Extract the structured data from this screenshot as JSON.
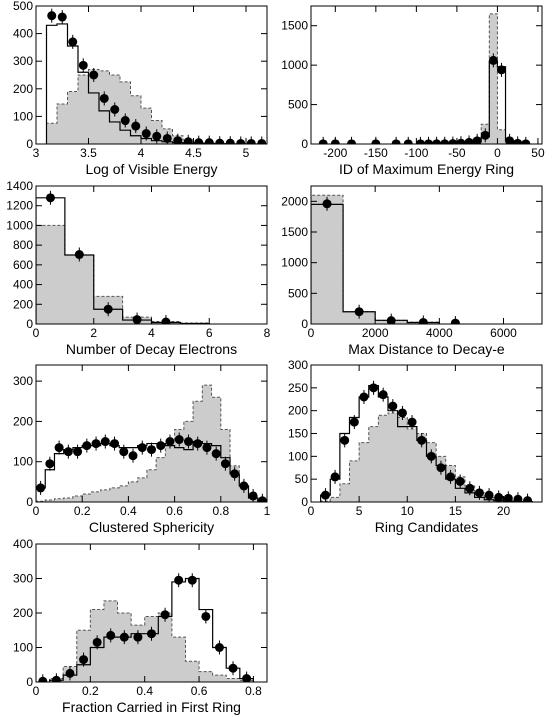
{
  "chart_data": [
    {
      "type": "bar",
      "xlabel": "Log of Visible Energy",
      "xlim": [
        3.0,
        5.2
      ],
      "ylim": [
        0,
        500
      ],
      "xticks": [
        3,
        3.5,
        4,
        4.5,
        5
      ],
      "xtick_labels": [
        "3",
        "3.5",
        "4",
        "4.5",
        "5"
      ],
      "yticks": [
        0,
        100,
        200,
        300,
        400,
        500
      ],
      "ytick_labels": [
        "0",
        "100",
        "200",
        "300",
        "400",
        "500"
      ],
      "bin_edges": [
        3.1,
        3.2,
        3.3,
        3.4,
        3.5,
        3.6,
        3.7,
        3.8,
        3.9,
        4.0,
        4.1,
        4.2,
        4.3,
        4.4,
        4.5,
        4.6,
        4.7,
        4.8,
        4.9,
        5.0,
        5.1,
        5.2
      ],
      "shaded_counts": [
        75,
        145,
        190,
        250,
        270,
        265,
        250,
        225,
        175,
        130,
        85,
        55,
        30,
        15,
        5,
        3,
        2,
        1,
        1,
        0,
        0
      ],
      "outline_counts": [
        430,
        435,
        355,
        260,
        185,
        120,
        80,
        50,
        30,
        20,
        12,
        8,
        5,
        3,
        2,
        1,
        1,
        0,
        0,
        0,
        0
      ],
      "points_x": [
        3.15,
        3.25,
        3.35,
        3.45,
        3.55,
        3.65,
        3.75,
        3.85,
        3.95,
        4.05,
        4.15,
        4.25,
        4.35,
        4.45,
        4.55,
        4.65,
        4.75,
        4.85,
        4.95,
        5.05,
        5.15
      ],
      "points_y": [
        465,
        460,
        370,
        285,
        250,
        165,
        125,
        85,
        65,
        38,
        28,
        20,
        12,
        8,
        5,
        5,
        3,
        3,
        2,
        2,
        2
      ]
    },
    {
      "type": "bar",
      "xlabel": "ID of Maximum Energy Ring",
      "xlim": [
        -230,
        55
      ],
      "ylim": [
        0,
        1750
      ],
      "xticks": [
        -200,
        -150,
        -100,
        -50,
        0,
        50
      ],
      "xtick_labels": [
        "-200",
        "-150",
        "-100",
        "-50",
        "0",
        "50"
      ],
      "yticks": [
        0,
        500,
        1000,
        1500
      ],
      "ytick_labels": [
        "0",
        "500",
        "1000",
        "1500"
      ],
      "bin_edges": [
        -40,
        -30,
        -20,
        -10,
        0,
        10,
        20,
        30
      ],
      "shaded_counts": [
        20,
        60,
        250,
        1650,
        180,
        20,
        5
      ],
      "outline_counts": [
        5,
        30,
        90,
        1050,
        980,
        40,
        5
      ],
      "points_x": [
        -215,
        -200,
        -180,
        -150,
        -125,
        -110,
        -95,
        -85,
        -75,
        -65,
        -55,
        -45,
        -35,
        -25,
        -15,
        -5,
        5,
        15,
        25,
        35
      ],
      "points_y": [
        2,
        2,
        2,
        2,
        2,
        2,
        2,
        2,
        3,
        3,
        5,
        10,
        20,
        40,
        110,
        1060,
        940,
        40,
        8,
        2
      ]
    },
    {
      "type": "bar",
      "xlabel": "Number of Decay Electrons",
      "xlim": [
        0,
        8
      ],
      "ylim": [
        0,
        1400
      ],
      "xticks": [
        0,
        2,
        4,
        6,
        8
      ],
      "xtick_labels": [
        "0",
        "2",
        "4",
        "6",
        "8"
      ],
      "yticks": [
        0,
        200,
        400,
        600,
        800,
        1000,
        1200,
        1400
      ],
      "ytick_labels": [
        "0",
        "200",
        "400",
        "600",
        "800",
        "1000",
        "1200",
        "1400"
      ],
      "bin_edges": [
        0,
        1,
        2,
        3,
        4,
        5,
        6
      ],
      "shaded_counts": [
        1000,
        700,
        280,
        70,
        25,
        10
      ],
      "outline_counts": [
        1280,
        700,
        150,
        40,
        15,
        5
      ],
      "points_x": [
        0.5,
        1.5,
        2.5,
        3.5,
        4.5
      ],
      "points_y": [
        1280,
        705,
        150,
        45,
        20
      ]
    },
    {
      "type": "bar",
      "xlabel": "Max Distance to Decay-e",
      "xlim": [
        0,
        7200
      ],
      "ylim": [
        0,
        2250
      ],
      "xticks": [
        0,
        2000,
        4000,
        6000
      ],
      "xtick_labels": [
        "0",
        "2000",
        "4000",
        "6000"
      ],
      "yticks": [
        0,
        500,
        1000,
        1500,
        2000
      ],
      "ytick_labels": [
        "0",
        "500",
        "1000",
        "1500",
        "2000"
      ],
      "bin_edges": [
        0,
        1000,
        2000,
        3000,
        4000
      ],
      "shaded_counts": [
        2100,
        200,
        60,
        30
      ],
      "outline_counts": [
        1950,
        200,
        60,
        25
      ],
      "points_x": [
        500,
        1500,
        2500,
        3500,
        4500
      ],
      "points_y": [
        1960,
        200,
        55,
        25,
        15
      ]
    },
    {
      "type": "bar",
      "xlabel": "Clustered Sphericity",
      "xlim": [
        0,
        1
      ],
      "ylim": [
        0,
        340
      ],
      "xticks": [
        0,
        0.2,
        0.4,
        0.6,
        0.8,
        1
      ],
      "xtick_labels": [
        "0",
        "0.2",
        "0.4",
        "0.6",
        "0.8",
        "1"
      ],
      "yticks": [
        0,
        100,
        200,
        300
      ],
      "ytick_labels": [
        "0",
        "100",
        "200",
        "300"
      ],
      "bin_edges": [
        0,
        0.04,
        0.08,
        0.12,
        0.16,
        0.2,
        0.24,
        0.28,
        0.32,
        0.36,
        0.4,
        0.44,
        0.48,
        0.52,
        0.56,
        0.6,
        0.64,
        0.68,
        0.72,
        0.76,
        0.8,
        0.84,
        0.88,
        0.92,
        0.96
      ],
      "shaded_counts": [
        2,
        5,
        8,
        10,
        15,
        20,
        25,
        30,
        35,
        40,
        50,
        60,
        80,
        110,
        150,
        180,
        200,
        250,
        290,
        260,
        180,
        90,
        40,
        10
      ],
      "outline_counts": [
        35,
        80,
        120,
        130,
        135,
        140,
        140,
        145,
        140,
        135,
        135,
        140,
        145,
        145,
        140,
        135,
        130,
        150,
        145,
        140,
        110,
        70,
        40,
        10
      ],
      "points_x": [
        0.02,
        0.06,
        0.1,
        0.14,
        0.18,
        0.22,
        0.26,
        0.3,
        0.34,
        0.38,
        0.42,
        0.46,
        0.5,
        0.54,
        0.58,
        0.62,
        0.66,
        0.7,
        0.74,
        0.78,
        0.82,
        0.86,
        0.9,
        0.94,
        0.98
      ],
      "points_y": [
        35,
        95,
        135,
        125,
        125,
        140,
        145,
        150,
        145,
        125,
        115,
        135,
        130,
        140,
        150,
        155,
        150,
        145,
        135,
        120,
        95,
        70,
        40,
        15,
        3
      ]
    },
    {
      "type": "bar",
      "xlabel": "Ring Candidates",
      "xlim": [
        0,
        24
      ],
      "ylim": [
        0,
        300
      ],
      "xticks": [
        0,
        5,
        10,
        15,
        20
      ],
      "xtick_labels": [
        "0",
        "5",
        "10",
        "15",
        "20"
      ],
      "yticks": [
        0,
        50,
        100,
        150,
        200,
        250,
        300
      ],
      "ytick_labels": [
        "0",
        "50",
        "100",
        "150",
        "200",
        "250",
        "300"
      ],
      "bin_edges": [
        1,
        2,
        3,
        4,
        5,
        6,
        7,
        8,
        9,
        10,
        11,
        12,
        13,
        14,
        15,
        16,
        17,
        18,
        19,
        20,
        21,
        22,
        23
      ],
      "shaded_counts": [
        2,
        10,
        40,
        90,
        130,
        165,
        190,
        195,
        185,
        160,
        150,
        130,
        100,
        80,
        55,
        35,
        20,
        10,
        5,
        3,
        2,
        1
      ],
      "outline_counts": [
        15,
        50,
        150,
        185,
        230,
        255,
        230,
        200,
        165,
        165,
        135,
        100,
        80,
        50,
        30,
        20,
        10,
        5,
        3,
        2,
        1,
        1
      ],
      "points_x": [
        1.5,
        2.5,
        3.5,
        4.5,
        5.5,
        6.5,
        7.5,
        8.5,
        9.5,
        10.5,
        11.5,
        12.5,
        13.5,
        14.5,
        15.5,
        16.5,
        17.5,
        18.5,
        19.5,
        20.5,
        21.5,
        22.5
      ],
      "points_y": [
        15,
        55,
        135,
        175,
        230,
        250,
        235,
        210,
        195,
        175,
        135,
        100,
        75,
        55,
        45,
        30,
        20,
        15,
        10,
        8,
        6,
        3
      ]
    },
    {
      "type": "bar",
      "xlabel": "Fraction Carried in First Ring",
      "xlim": [
        0,
        0.85
      ],
      "ylim": [
        0,
        400
      ],
      "xticks": [
        0,
        0.2,
        0.4,
        0.6,
        0.8
      ],
      "xtick_labels": [
        "0",
        "0.2",
        "0.4",
        "0.6",
        "0.8"
      ],
      "yticks": [
        0,
        100,
        200,
        300,
        400
      ],
      "ytick_labels": [
        "0",
        "100",
        "200",
        "300",
        "400"
      ],
      "bin_edges": [
        0.05,
        0.1,
        0.15,
        0.2,
        0.25,
        0.3,
        0.35,
        0.4,
        0.45,
        0.5,
        0.55,
        0.6,
        0.65,
        0.7,
        0.75,
        0.8
      ],
      "shaded_counts": [
        10,
        45,
        150,
        210,
        235,
        200,
        165,
        190,
        200,
        130,
        60,
        30,
        20,
        10,
        5
      ],
      "outline_counts": [
        5,
        20,
        50,
        100,
        130,
        130,
        140,
        140,
        190,
        290,
        300,
        210,
        100,
        40,
        10
      ],
      "points_x": [
        0.025,
        0.075,
        0.125,
        0.175,
        0.225,
        0.275,
        0.325,
        0.375,
        0.425,
        0.475,
        0.525,
        0.575,
        0.625,
        0.675,
        0.725,
        0.775
      ],
      "points_y": [
        2,
        5,
        25,
        65,
        115,
        135,
        130,
        130,
        140,
        195,
        295,
        295,
        190,
        100,
        40,
        10
      ]
    }
  ]
}
